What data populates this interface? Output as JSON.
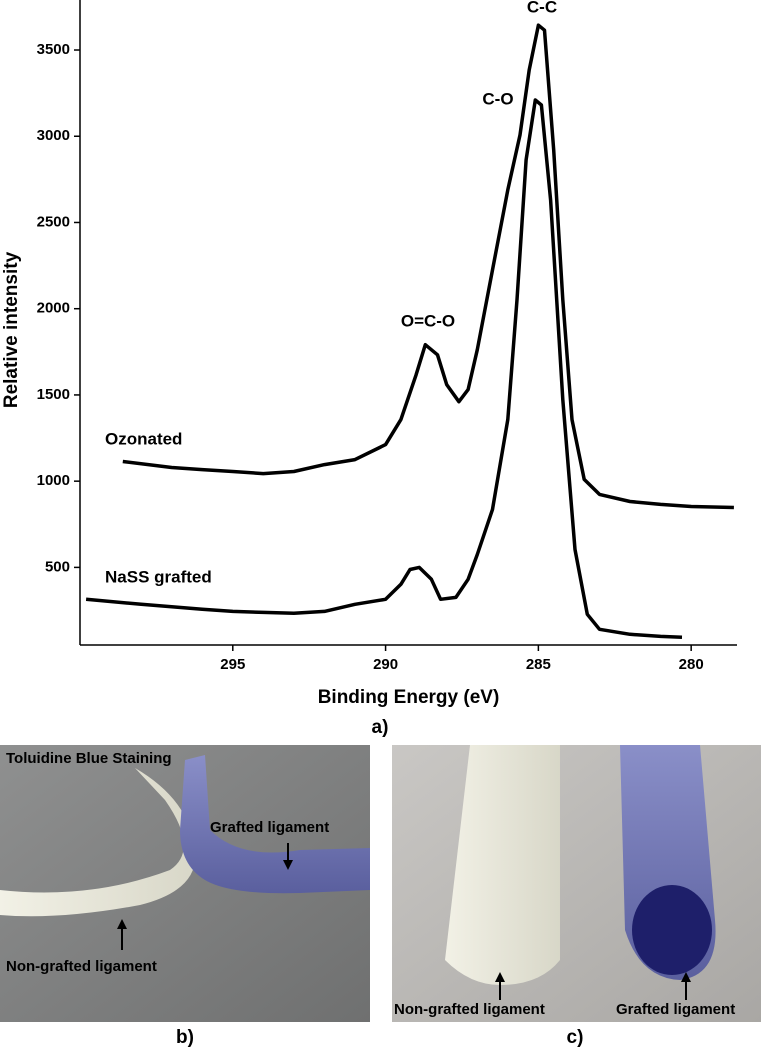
{
  "chart_data": {
    "type": "line",
    "xlabel": "Binding Energy (eV)",
    "ylabel": "Relative intensity",
    "panel_label": "a)",
    "xlim": [
      300,
      278.5
    ],
    "ylim": [
      50,
      3790
    ],
    "xticks": [
      295,
      290,
      285,
      280
    ],
    "yticks": [
      500,
      1000,
      1500,
      2000,
      2500,
      3000,
      3500
    ],
    "annotations": [
      "C-C",
      "C-O",
      "O=C-O"
    ],
    "series": [
      {
        "name": "Ozonated",
        "color": "#000000",
        "x": [
          298.6,
          297,
          296,
          295,
          294,
          293,
          292,
          291,
          290,
          289.5,
          289,
          288.7,
          288.3,
          288,
          287.6,
          287.3,
          287,
          286.5,
          286,
          285.6,
          285.3,
          285,
          284.8,
          284.5,
          284.2,
          283.9,
          283.5,
          283,
          282,
          281,
          280,
          278.6
        ],
        "values": [
          1114,
          1079,
          1067,
          1056,
          1044,
          1056,
          1096,
          1125,
          1212,
          1357,
          1617,
          1791,
          1733,
          1560,
          1461,
          1531,
          1762,
          2225,
          2689,
          3007,
          3384,
          3644,
          3615,
          2920,
          2052,
          1357,
          1010,
          923,
          882,
          865,
          853,
          847
        ]
      },
      {
        "name": "NaSS grafted",
        "color": "#000000",
        "x": [
          299.8,
          298,
          296,
          295,
          294,
          293,
          292,
          291,
          290,
          289.5,
          289.2,
          288.9,
          288.5,
          288.2,
          287.7,
          287.3,
          287,
          286.5,
          286,
          285.7,
          285.4,
          285.1,
          284.9,
          284.6,
          284.2,
          283.8,
          283.4,
          283,
          282,
          281,
          280.3
        ],
        "values": [
          315,
          286,
          257,
          245,
          239,
          234,
          245,
          286,
          315,
          402,
          488,
          500,
          431,
          315,
          326,
          431,
          575,
          836,
          1357,
          2052,
          2863,
          3210,
          3181,
          2631,
          1473,
          604,
          228,
          141,
          112,
          100,
          95
        ]
      }
    ]
  },
  "panels": [
    {
      "label": "b)",
      "title": "Toluidine Blue Staining",
      "annotations": [
        "Grafted ligament",
        "Non-grafted ligament"
      ]
    },
    {
      "label": "c)",
      "annotations": [
        "Non-grafted ligament",
        "Grafted ligament"
      ]
    }
  ]
}
